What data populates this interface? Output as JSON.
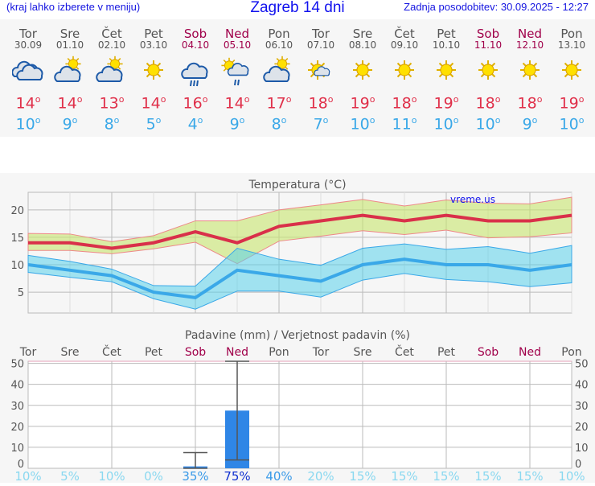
{
  "header": {
    "hint": "(kraj lahko izberete v meniju)",
    "title": "Zagreb 14 dni",
    "updated": "Zadnja posodobitev: 30.09.2025 - 12:27"
  },
  "days": [
    {
      "name": "Tor",
      "date": "30.09",
      "weekend": false,
      "icon": "cloudy-icon",
      "max": "14",
      "min": "10"
    },
    {
      "name": "Sre",
      "date": "01.10",
      "weekend": false,
      "icon": "partly-cloudy-icon",
      "max": "14",
      "min": "9"
    },
    {
      "name": "Čet",
      "date": "02.10",
      "weekend": false,
      "icon": "partly-cloudy-icon",
      "max": "13",
      "min": "8"
    },
    {
      "name": "Pet",
      "date": "03.10",
      "weekend": false,
      "icon": "sun-icon",
      "max": "14",
      "min": "5"
    },
    {
      "name": "Sob",
      "date": "04.10",
      "weekend": true,
      "icon": "rain-cloud-icon",
      "max": "16",
      "min": "4"
    },
    {
      "name": "Ned",
      "date": "05.10",
      "weekend": true,
      "icon": "sun-rain-icon",
      "max": "14",
      "min": "9"
    },
    {
      "name": "Pon",
      "date": "06.10",
      "weekend": false,
      "icon": "partly-cloudy-icon",
      "max": "17",
      "min": "8"
    },
    {
      "name": "Tor",
      "date": "07.10",
      "weekend": false,
      "icon": "mostly-sunny-icon",
      "max": "18",
      "min": "7"
    },
    {
      "name": "Sre",
      "date": "08.10",
      "weekend": false,
      "icon": "sun-icon",
      "max": "19",
      "min": "10"
    },
    {
      "name": "Čet",
      "date": "09.10",
      "weekend": false,
      "icon": "sun-icon",
      "max": "18",
      "min": "11"
    },
    {
      "name": "Pet",
      "date": "10.10",
      "weekend": false,
      "icon": "sun-icon",
      "max": "19",
      "min": "10"
    },
    {
      "name": "Sob",
      "date": "11.10",
      "weekend": true,
      "icon": "sun-icon",
      "max": "18",
      "min": "10"
    },
    {
      "name": "Ned",
      "date": "12.10",
      "weekend": true,
      "icon": "sun-icon",
      "max": "18",
      "min": "9"
    },
    {
      "name": "Pon",
      "date": "13.10",
      "weekend": false,
      "icon": "sun-icon",
      "max": "19",
      "min": "10"
    }
  ],
  "degree": "o",
  "colors": {
    "max": "#e0304a",
    "min": "#3aa8e8",
    "weekend": "#a0004a",
    "bar": "#2f86e6"
  },
  "chart_data": [
    {
      "type": "area",
      "title": "Temperatura (°C)",
      "watermark": "vreme.us",
      "ylim": [
        1.2,
        23.2
      ],
      "yticks": [
        5,
        10,
        15,
        20
      ],
      "grid": true,
      "max": [
        14,
        14,
        13,
        14,
        16,
        14,
        17,
        18,
        19,
        18,
        19,
        18,
        18,
        19
      ],
      "max_band_high": [
        15.7,
        15.6,
        14.2,
        15.3,
        18,
        18,
        20,
        20.9,
        21.9,
        20.7,
        21.8,
        21.2,
        21.1,
        22.3
      ],
      "max_band_low": [
        12.6,
        12.6,
        12,
        12.9,
        14.1,
        10.2,
        14.3,
        15.2,
        16.2,
        15.5,
        16.3,
        14.9,
        15.1,
        15.8
      ],
      "min": [
        10,
        9,
        8,
        5,
        4,
        9,
        8,
        7,
        10,
        11,
        10,
        10,
        9,
        10
      ],
      "min_band_high": [
        11.7,
        10.6,
        9.2,
        6.2,
        6.1,
        13,
        11,
        9.9,
        13,
        13.8,
        12.8,
        13.3,
        12.1,
        13.5
      ],
      "min_band_low": [
        8.6,
        7.7,
        6.9,
        3.8,
        1.9,
        5.2,
        5.2,
        4.1,
        7.2,
        8.4,
        7.3,
        6.9,
        6.0,
        6.7
      ]
    },
    {
      "type": "bar",
      "title": "Padavine (mm) / Verjetnost padavin (%)",
      "ylim": [
        0,
        51
      ],
      "yticks": [
        0,
        10,
        20,
        30,
        40,
        50
      ],
      "grid": true,
      "categories": [
        "Tor",
        "Sre",
        "Čet",
        "Pet",
        "Sob",
        "Ned",
        "Pon",
        "Tor",
        "Sre",
        "Čet",
        "Pet",
        "Sob",
        "Ned",
        "Pon"
      ],
      "values": [
        0,
        0,
        0,
        0,
        0.9,
        27.5,
        0,
        0,
        0,
        0,
        0,
        0,
        0,
        0
      ],
      "error_low": [
        null,
        null,
        null,
        null,
        0,
        4,
        null,
        null,
        null,
        null,
        null,
        null,
        null,
        null
      ],
      "error_high": [
        null,
        null,
        null,
        null,
        7.5,
        51,
        null,
        null,
        null,
        null,
        null,
        null,
        null,
        null
      ],
      "probability": [
        "10%",
        "5%",
        "10%",
        "0%",
        "35%",
        "75%",
        "40%",
        "20%",
        "15%",
        "15%",
        "15%",
        "15%",
        "15%",
        "10%"
      ]
    }
  ]
}
